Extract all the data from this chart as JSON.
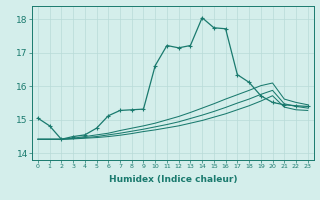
{
  "xlabel": "Humidex (Indice chaleur)",
  "xlim": [
    -0.5,
    23.5
  ],
  "ylim": [
    13.8,
    18.4
  ],
  "xtick_labels": [
    "0",
    "1",
    "2",
    "3",
    "4",
    "5",
    "6",
    "7",
    "8",
    "9",
    "10",
    "11",
    "12",
    "13",
    "14",
    "15",
    "16",
    "17",
    "18",
    "19",
    "20",
    "21",
    "22",
    "23"
  ],
  "xtick_vals": [
    0,
    1,
    2,
    3,
    4,
    5,
    6,
    7,
    8,
    9,
    10,
    11,
    12,
    13,
    14,
    15,
    16,
    17,
    18,
    19,
    20,
    21,
    22,
    23
  ],
  "ytick_vals": [
    14,
    15,
    16,
    17,
    18
  ],
  "bg_color": "#d4eeeb",
  "grid_color": "#b8dbd8",
  "line_color": "#1a7a6e",
  "lines": [
    {
      "x": [
        0,
        1,
        2,
        3,
        4,
        5,
        6,
        7,
        8,
        9,
        10,
        11,
        12,
        13,
        14,
        15,
        16,
        17,
        18,
        19,
        20,
        21,
        22,
        23
      ],
      "y": [
        15.05,
        14.82,
        14.42,
        14.5,
        14.55,
        14.75,
        15.12,
        15.28,
        15.3,
        15.32,
        16.62,
        17.22,
        17.15,
        17.22,
        18.05,
        17.75,
        17.72,
        16.35,
        16.12,
        15.72,
        15.52,
        15.45,
        15.42,
        15.4
      ],
      "marker": true
    },
    {
      "x": [
        0,
        1,
        2,
        3,
        4,
        5,
        6,
        7,
        8,
        9,
        10,
        11,
        12,
        13,
        14,
        15,
        16,
        17,
        18,
        19,
        20,
        21,
        22,
        23
      ],
      "y": [
        14.42,
        14.42,
        14.42,
        14.45,
        14.5,
        14.55,
        14.6,
        14.68,
        14.75,
        14.82,
        14.9,
        15.0,
        15.1,
        15.22,
        15.35,
        15.48,
        15.62,
        15.75,
        15.88,
        16.02,
        16.1,
        15.62,
        15.52,
        15.45
      ],
      "marker": false
    },
    {
      "x": [
        0,
        1,
        2,
        3,
        4,
        5,
        6,
        7,
        8,
        9,
        10,
        11,
        12,
        13,
        14,
        15,
        16,
        17,
        18,
        19,
        20,
        21,
        22,
        23
      ],
      "y": [
        14.42,
        14.42,
        14.42,
        14.44,
        14.47,
        14.5,
        14.55,
        14.6,
        14.66,
        14.72,
        14.79,
        14.86,
        14.94,
        15.04,
        15.14,
        15.25,
        15.37,
        15.5,
        15.62,
        15.76,
        15.88,
        15.48,
        15.4,
        15.35
      ],
      "marker": false
    },
    {
      "x": [
        0,
        1,
        2,
        3,
        4,
        5,
        6,
        7,
        8,
        9,
        10,
        11,
        12,
        13,
        14,
        15,
        16,
        17,
        18,
        19,
        20,
        21,
        22,
        23
      ],
      "y": [
        14.42,
        14.42,
        14.42,
        14.43,
        14.45,
        14.47,
        14.5,
        14.54,
        14.59,
        14.65,
        14.7,
        14.76,
        14.82,
        14.9,
        14.98,
        15.08,
        15.18,
        15.3,
        15.42,
        15.56,
        15.72,
        15.38,
        15.3,
        15.28
      ],
      "marker": false
    }
  ]
}
